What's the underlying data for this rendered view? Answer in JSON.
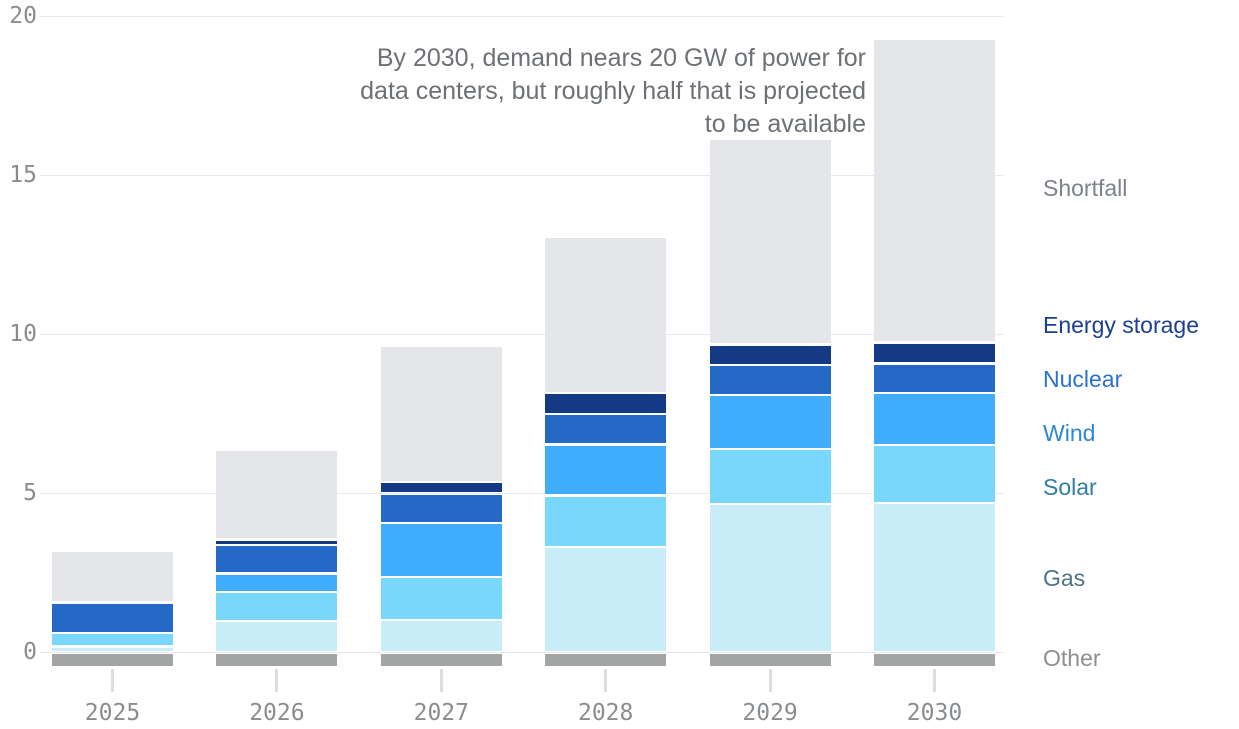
{
  "title": {
    "lines": [
      "By 2030, demand nears 20 GW of power for",
      "data centers, but roughly half that is projected",
      "to be available"
    ]
  },
  "legend": {
    "entries": [
      {
        "label": "Shortfall",
        "text_color": "#7c828a",
        "y_center": 188
      },
      {
        "label": "Energy storage",
        "text_color": "#1a3f94",
        "y_center": 325
      },
      {
        "label": "Nuclear",
        "text_color": "#2a71d0",
        "y_center": 379
      },
      {
        "label": "Wind",
        "text_color": "#2d88cf",
        "y_center": 433
      },
      {
        "label": "Solar",
        "text_color": "#2f7da4",
        "y_center": 487
      },
      {
        "label": "Gas",
        "text_color": "#4d7484",
        "y_center": 578
      },
      {
        "label": "Other",
        "text_color": "#8c8f91",
        "y_center": 658
      }
    ]
  },
  "chart_data": {
    "type": "bar",
    "stacked": true,
    "unit": "GW",
    "title": "By 2030, demand nears 20 GW of power for data centers, but roughly half that is projected to be available",
    "categories": [
      "2025",
      "2026",
      "2027",
      "2028",
      "2029",
      "2030"
    ],
    "series": [
      {
        "name": "Other",
        "color": "#a3a4a4",
        "below_axis": true,
        "values": [
          0.4,
          0.4,
          0.4,
          0.4,
          0.4,
          0.4
        ]
      },
      {
        "name": "Gas",
        "color": "#c8edf8",
        "values": [
          0.17,
          0.97,
          1.0,
          3.3,
          4.66,
          4.69
        ]
      },
      {
        "name": "Solar",
        "color": "#79d7fc",
        "values": [
          0.43,
          0.92,
          1.36,
          1.62,
          1.73,
          1.82
        ]
      },
      {
        "name": "Wind",
        "color": "#3fadfc",
        "values": [
          0,
          0.58,
          1.7,
          1.61,
          1.69,
          1.64
        ]
      },
      {
        "name": "Nuclear",
        "color": "#2568c5",
        "values": [
          0.96,
          0.89,
          0.92,
          0.96,
          0.95,
          0.92
        ]
      },
      {
        "name": "Energy storage",
        "color": "#143a85",
        "values": [
          0,
          0.18,
          0.37,
          0.66,
          0.64,
          0.67
        ]
      },
      {
        "name": "Shortfall",
        "color": "#e4e6e9",
        "values": [
          1.62,
          2.83,
          4.29,
          4.9,
          6.48,
          9.56
        ]
      }
    ],
    "stack_totals_above_axis": [
      3.18,
      6.37,
      9.64,
      13.05,
      16.15,
      19.3
    ],
    "ylim": [
      0,
      20
    ],
    "yticks": [
      0,
      5,
      10,
      15,
      20
    ],
    "grid": true,
    "legend_position": "right"
  }
}
